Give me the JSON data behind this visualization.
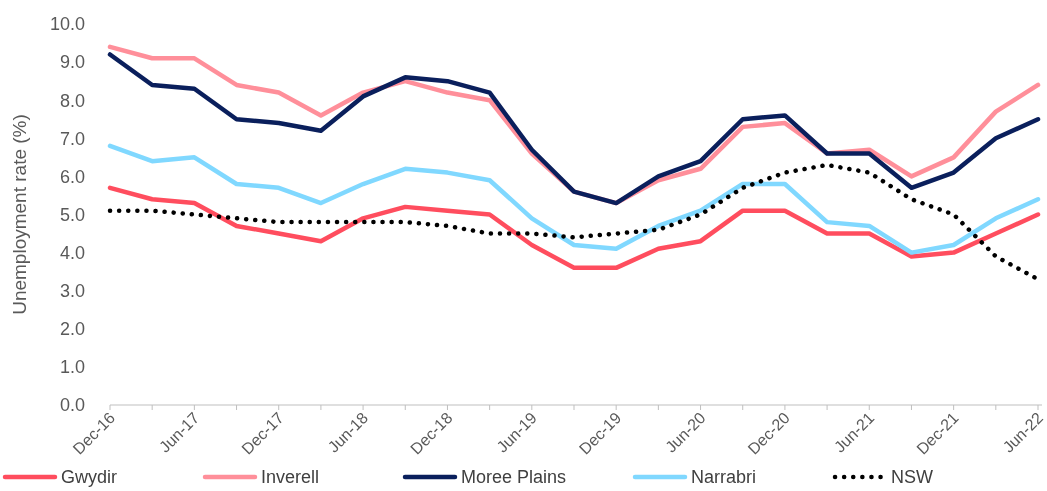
{
  "chart_data": {
    "type": "line",
    "ylabel": "Unemployment rate (%)",
    "categories": [
      "Dec-16",
      null,
      "Jun-17",
      null,
      "Dec-17",
      null,
      "Jun-18",
      null,
      "Dec-18",
      null,
      "Jun-19",
      null,
      "Dec-19",
      null,
      "Jun-20",
      null,
      "Dec-20",
      null,
      "Jun-21",
      null,
      "Dec-21",
      null,
      "Jun-22"
    ],
    "ylim": [
      0,
      10
    ],
    "yticks": [
      {
        "value": 0,
        "label": "0.0"
      },
      {
        "value": 1,
        "label": "1.0"
      },
      {
        "value": 2,
        "label": "2.0"
      },
      {
        "value": 3,
        "label": "3.0"
      },
      {
        "value": 4,
        "label": "4.0"
      },
      {
        "value": 5,
        "label": "5.0"
      },
      {
        "value": 6,
        "label": "6.0"
      },
      {
        "value": 7,
        "label": "7.0"
      },
      {
        "value": 8,
        "label": "8.0"
      },
      {
        "value": 9,
        "label": "9.0"
      },
      {
        "value": 10,
        "label": "10.0"
      }
    ],
    "grid": false,
    "legend": "bottom",
    "marker": "none",
    "series": [
      {
        "name": "Gwydir",
        "color": "#ff4d5e",
        "line_style": "solid",
        "values": [
          5.7,
          5.4,
          5.3,
          4.7,
          4.5,
          4.3,
          4.9,
          5.2,
          5.1,
          5.0,
          4.2,
          3.6,
          3.6,
          4.1,
          4.3,
          5.1,
          5.1,
          4.5,
          4.5,
          3.9,
          4.0,
          4.5,
          5.0
        ]
      },
      {
        "name": "Inverell",
        "color": "#ff8f9a",
        "line_style": "solid",
        "values": [
          9.4,
          9.1,
          9.1,
          8.4,
          8.2,
          7.6,
          8.2,
          8.5,
          8.2,
          8.0,
          6.6,
          5.6,
          5.3,
          5.9,
          6.2,
          7.3,
          7.4,
          6.6,
          6.7,
          6.0,
          6.5,
          7.7,
          8.4
        ]
      },
      {
        "name": "Moree Plains",
        "color": "#0a1f5c",
        "line_style": "solid",
        "values": [
          9.2,
          8.4,
          8.3,
          7.5,
          7.4,
          7.2,
          8.1,
          8.6,
          8.5,
          8.2,
          6.7,
          5.6,
          5.3,
          6.0,
          6.4,
          7.5,
          7.6,
          6.6,
          6.6,
          5.7,
          6.1,
          7.0,
          7.5
        ]
      },
      {
        "name": "Narrabri",
        "color": "#80d8ff",
        "line_style": "solid",
        "values": [
          6.8,
          6.4,
          6.5,
          5.8,
          5.7,
          5.3,
          5.8,
          6.2,
          6.1,
          5.9,
          4.9,
          4.2,
          4.1,
          4.7,
          5.1,
          5.8,
          5.8,
          4.8,
          4.7,
          4.0,
          4.2,
          4.9,
          5.4
        ]
      },
      {
        "name": "NSW",
        "color": "#000000",
        "line_style": "dotted",
        "values": [
          5.1,
          5.1,
          5.0,
          4.9,
          4.8,
          4.8,
          4.8,
          4.8,
          4.7,
          4.5,
          4.5,
          4.4,
          4.5,
          4.6,
          5.0,
          5.7,
          6.1,
          6.3,
          6.1,
          5.4,
          5.0,
          3.9,
          3.3
        ]
      }
    ]
  }
}
